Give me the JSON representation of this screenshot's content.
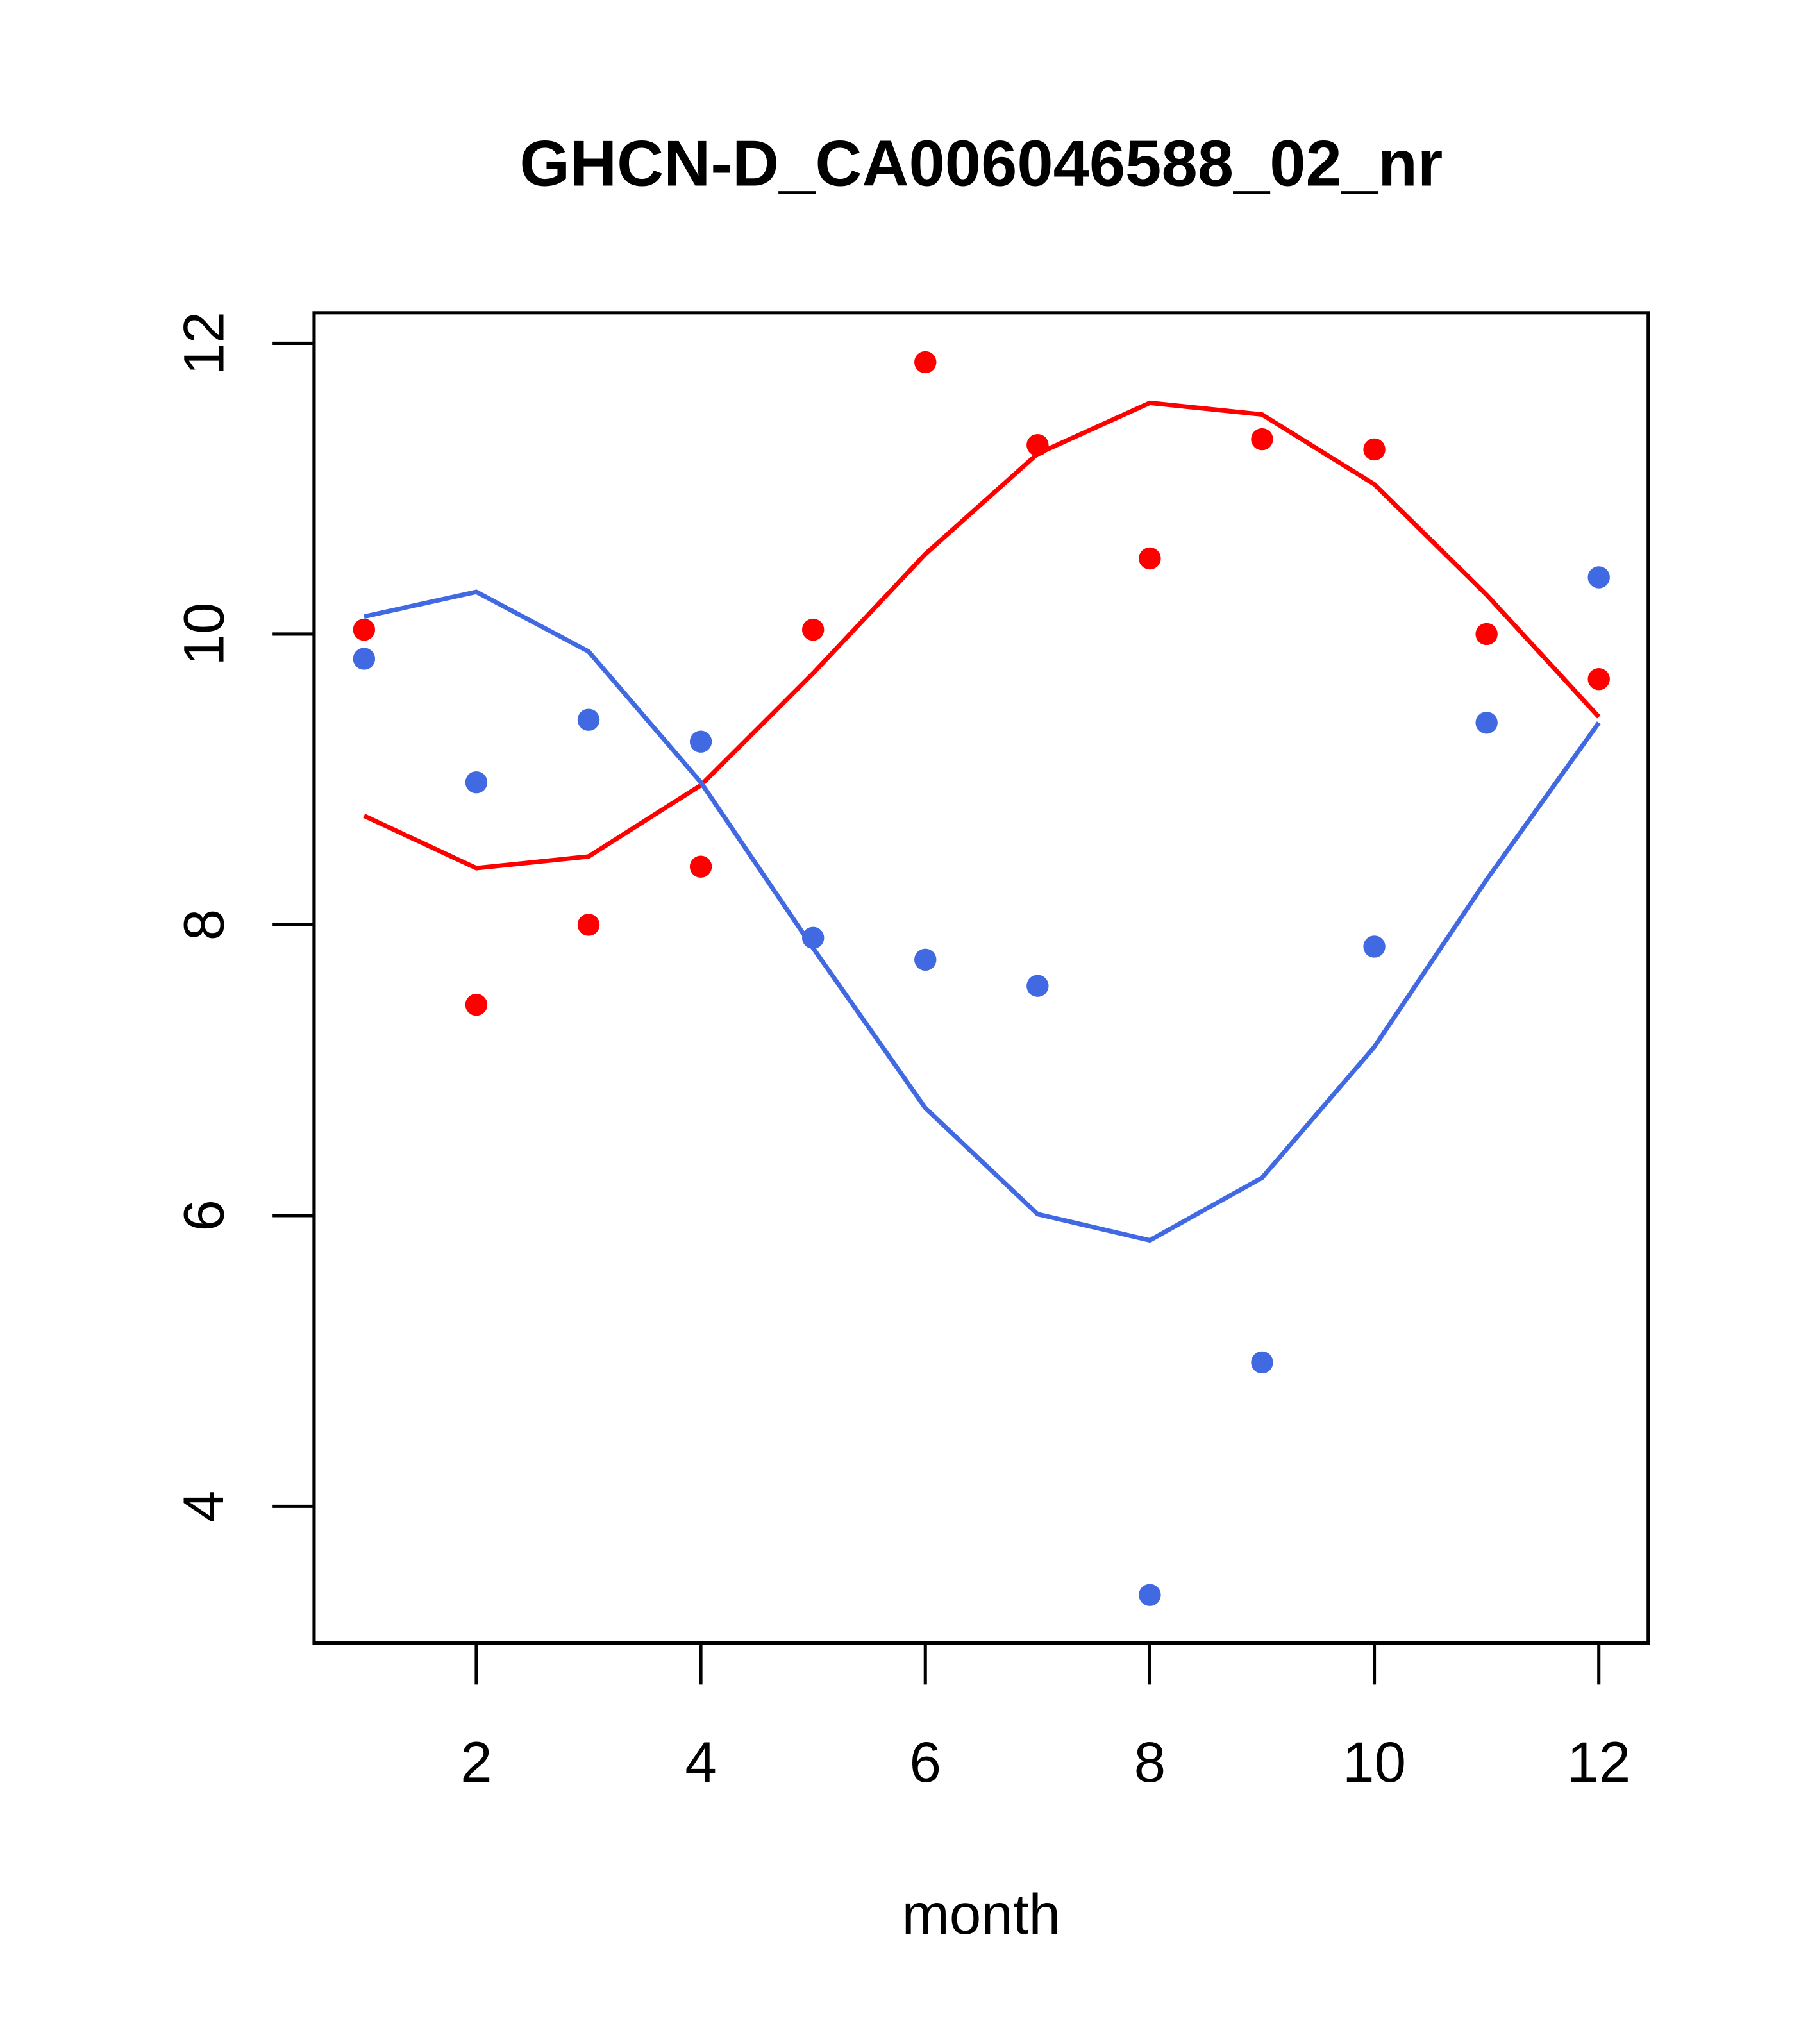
{
  "chart_data": {
    "type": "scatter",
    "title": "GHCN-D_CA006046588_02_nr",
    "xlabel": "month",
    "ylabel": "",
    "xlim": [
      0.555,
      12.44
    ],
    "ylim": [
      3.06,
      12.21
    ],
    "xticks": [
      2,
      4,
      6,
      8,
      10,
      12
    ],
    "yticks": [
      4,
      6,
      8,
      10,
      12
    ],
    "grid": false,
    "x": [
      1,
      2,
      3,
      4,
      5,
      6,
      7,
      8,
      9,
      10,
      11,
      12
    ],
    "series": [
      {
        "name": "red points",
        "kind": "points",
        "color": "#ff0000",
        "values": [
          10.03,
          7.45,
          8.0,
          8.4,
          10.03,
          11.87,
          11.3,
          10.52,
          11.34,
          11.27,
          10.0,
          9.69
        ]
      },
      {
        "name": "red line",
        "kind": "line",
        "color": "#ff0000",
        "values": [
          8.75,
          8.39,
          8.47,
          8.96,
          9.73,
          10.55,
          11.24,
          11.59,
          11.51,
          11.03,
          10.27,
          9.43
        ]
      },
      {
        "name": "blue points",
        "kind": "points",
        "color": "#4169e1",
        "values": [
          9.83,
          8.98,
          9.41,
          9.26,
          7.91,
          7.76,
          7.58,
          3.39,
          4.99,
          7.85,
          9.39,
          10.39
        ]
      },
      {
        "name": "blue line",
        "kind": "line",
        "color": "#4169e1",
        "values": [
          10.12,
          10.29,
          9.88,
          8.98,
          7.84,
          6.74,
          6.01,
          5.83,
          6.26,
          7.16,
          8.31,
          9.39
        ]
      }
    ]
  }
}
